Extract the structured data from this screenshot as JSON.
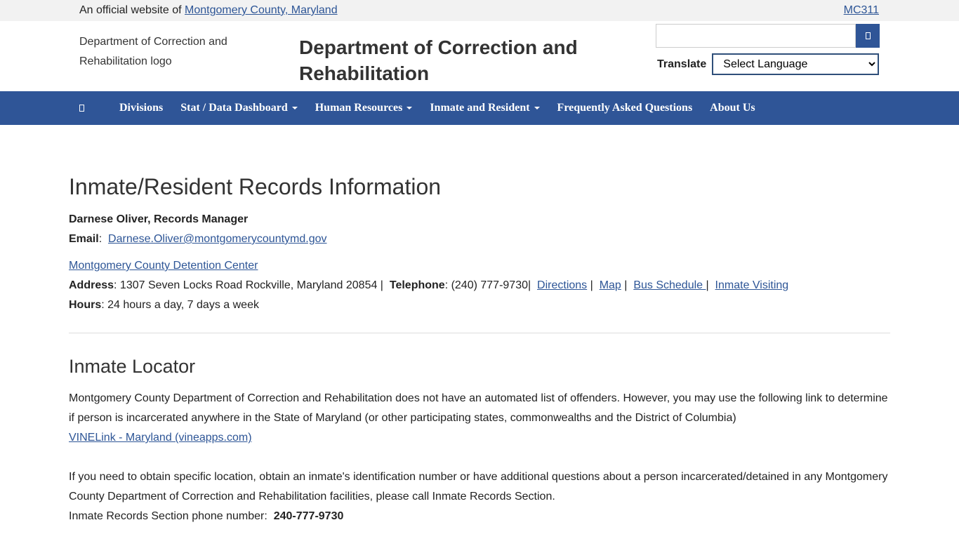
{
  "topbar": {
    "official_prefix": "An official website of",
    "county_link": "Montgomery County, Maryland",
    "mc311": "MC311"
  },
  "header": {
    "logo_alt": "Department of Correction and Rehabilitation logo",
    "title": "Department of Correction and Rehabilitation",
    "search_placeholder": "",
    "translate_label": "Translate",
    "language_selected": "Select Language"
  },
  "nav": {
    "items": [
      {
        "label": "Divisions"
      },
      {
        "label": "Stat / Data Dashboard",
        "dropdown": true
      },
      {
        "label": "Human Resources",
        "dropdown": true
      },
      {
        "label": "Inmate and Resident",
        "dropdown": true
      },
      {
        "label": "Frequently Asked Questions"
      },
      {
        "label": "About Us"
      }
    ]
  },
  "records": {
    "heading": "Inmate/Resident Records Information",
    "manager": "Darnese Oliver, Records Manager",
    "email_label": "Email",
    "email": "Darnese.Oliver@montgomerycountymd.gov",
    "facility_link": "Montgomery County Detention Center",
    "address_label": "Address",
    "address": ": 1307 Seven Locks Road Rockville, Maryland 20854 |",
    "telephone_label": "Telephone",
    "telephone": ": (240) 777-9730|",
    "links": [
      "Directions",
      "Map",
      "Bus Schedule ",
      "Inmate Visiting"
    ],
    "hours_label": "Hours",
    "hours": ": 24 hours a day, 7 days a week"
  },
  "locator": {
    "heading": "Inmate Locator",
    "para1": "Montgomery County Department of Correction and Rehabilitation does not have an automated list of offenders.  However, you may use the following link to determine if person is incarcerated anywhere in the State of Maryland (or other participating states, commonwealths and the District of Columbia)",
    "vinelink": "VINELink - Maryland (vineapps.com)",
    "para2": "If you need to obtain specific location, obtain an inmate's identification number or have additional questions about a person incarcerated/detained in any Montgomery County Department of Correction and Rehabilitation facilities, please call Inmate Records Section.",
    "phone_label": "Inmate Records Section phone number:",
    "phone": "240-777-9730"
  }
}
